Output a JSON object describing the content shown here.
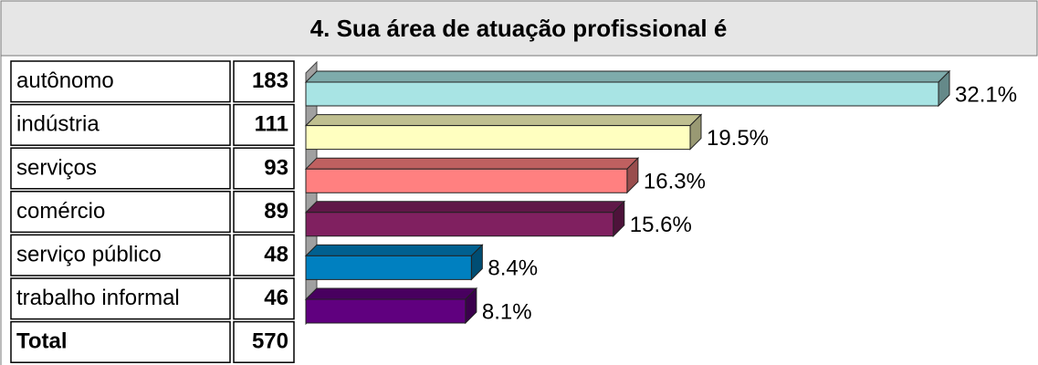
{
  "chart_data": {
    "type": "bar",
    "title": "4. Sua área de atuação profissional é",
    "categories": [
      "autônomo",
      "indústria",
      "serviços",
      "comércio",
      "serviço público",
      "trabalho informal"
    ],
    "counts": [
      183,
      111,
      93,
      89,
      48,
      46
    ],
    "total_label": "Total",
    "total": 570,
    "values": [
      32.1,
      19.5,
      16.3,
      15.6,
      8.4,
      8.1
    ],
    "value_labels": [
      "32.1%",
      "19.5%",
      "16.3%",
      "15.6%",
      "8.4%",
      "8.1%"
    ],
    "colors": [
      "#a8e4e4",
      "#ffffc0",
      "#ff8080",
      "#802060",
      "#0080c0",
      "#60007f"
    ]
  }
}
